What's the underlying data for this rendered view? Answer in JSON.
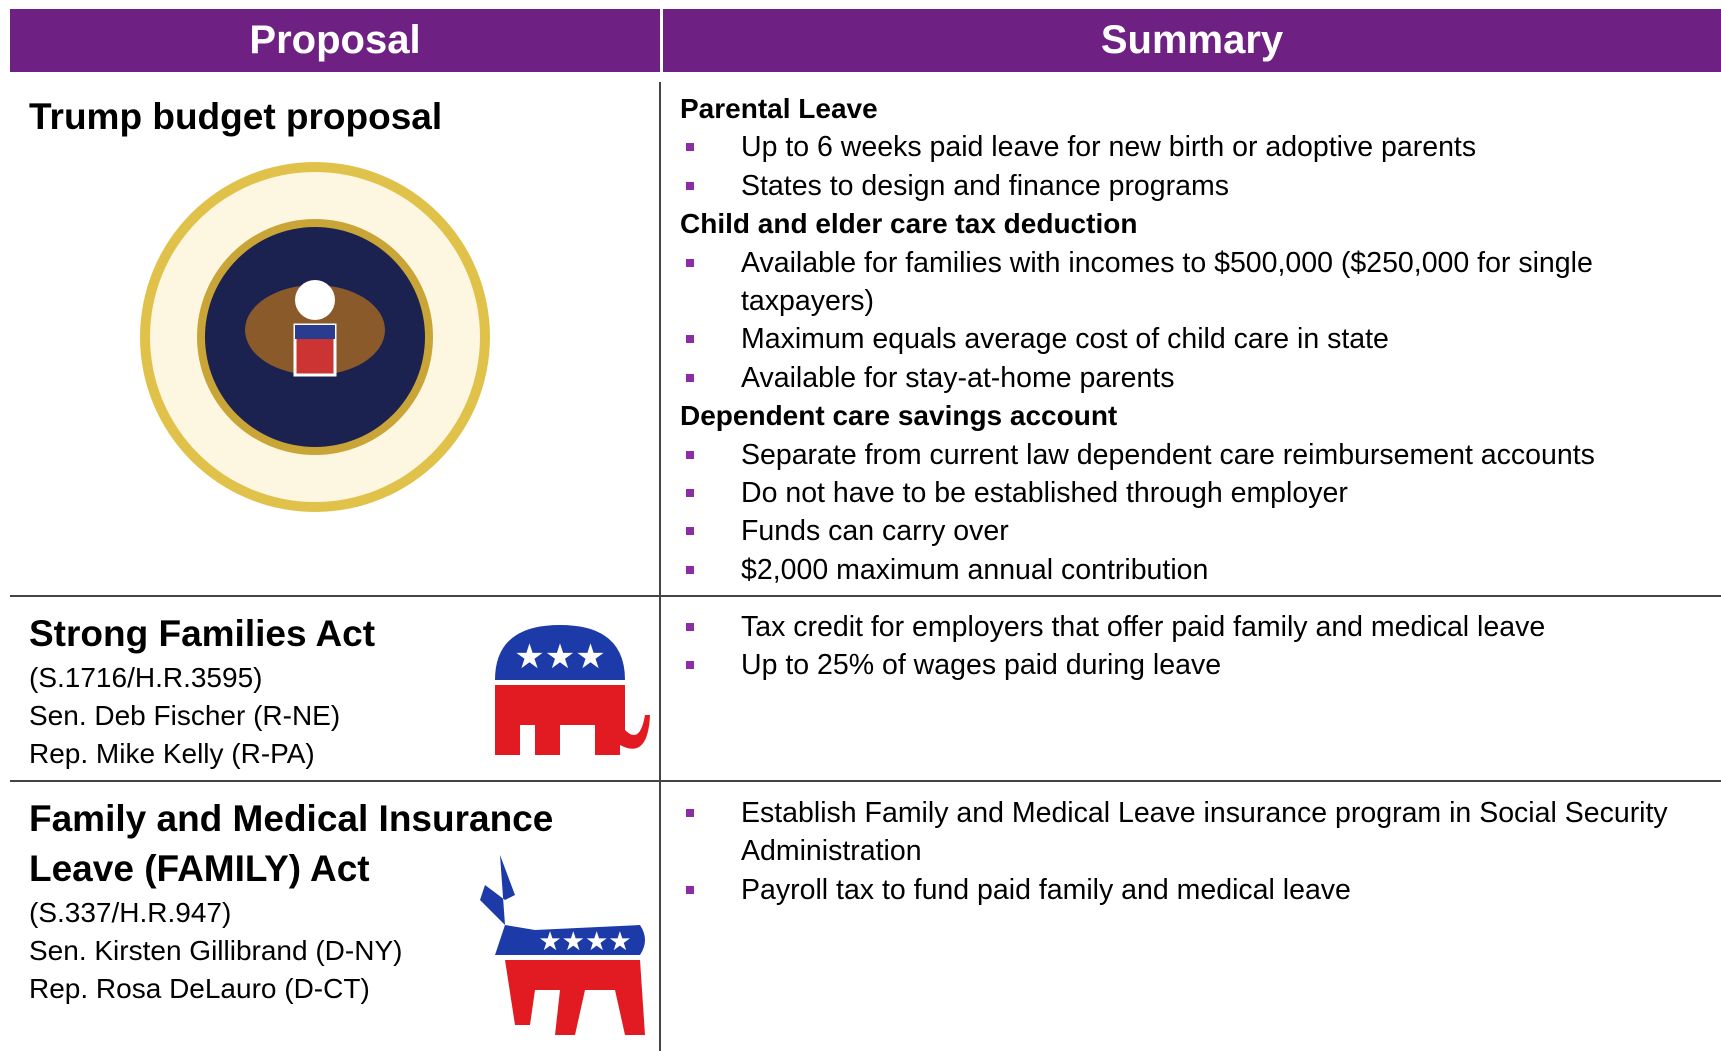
{
  "header": {
    "columns": [
      "Proposal",
      "Summary"
    ]
  },
  "rows": [
    {
      "title": "Trump budget proposal",
      "details": [],
      "summary": [
        {
          "heading": "Parental Leave",
          "bullets": [
            "Up to 6 weeks paid leave for new birth or adoptive parents",
            "States to design and finance programs"
          ]
        },
        {
          "heading": "Child and elder care tax deduction",
          "bullets": [
            "Available for families with incomes to $500,000 ($250,000 for single taxpayers)",
            "Maximum equals average cost of child care in state",
            "Available for stay-at-home parents"
          ]
        },
        {
          "heading": "Dependent care savings account",
          "bullets": [
            "Separate from current law dependent care reimbursement accounts",
            "Do not have to be established through employer",
            "Funds can carry over",
            "$2,000 maximum annual contribution"
          ]
        }
      ]
    },
    {
      "title": "Strong Families Act",
      "details": [
        "(S.1716/H.R.3595)",
        "Sen. Deb Fischer (R-NE)",
        "Rep. Mike Kelly (R-PA)"
      ],
      "summary": [
        {
          "bullets": [
            "Tax credit for employers that offer paid family and medical leave",
            "Up to 25% of wages paid during leave"
          ]
        }
      ]
    },
    {
      "title": "Family and Medical Insurance Leave (FAMILY) Act",
      "details": [
        "(S.337/H.R.947)",
        "Sen. Kirsten Gillibrand (D-NY)",
        "Rep. Rosa DeLauro (D-CT)"
      ],
      "summary": [
        {
          "bullets": [
            "Establish Family and Medical Leave insurance program in Social Security Administration",
            "Payroll tax to fund paid family and medical leave"
          ]
        }
      ]
    }
  ]
}
